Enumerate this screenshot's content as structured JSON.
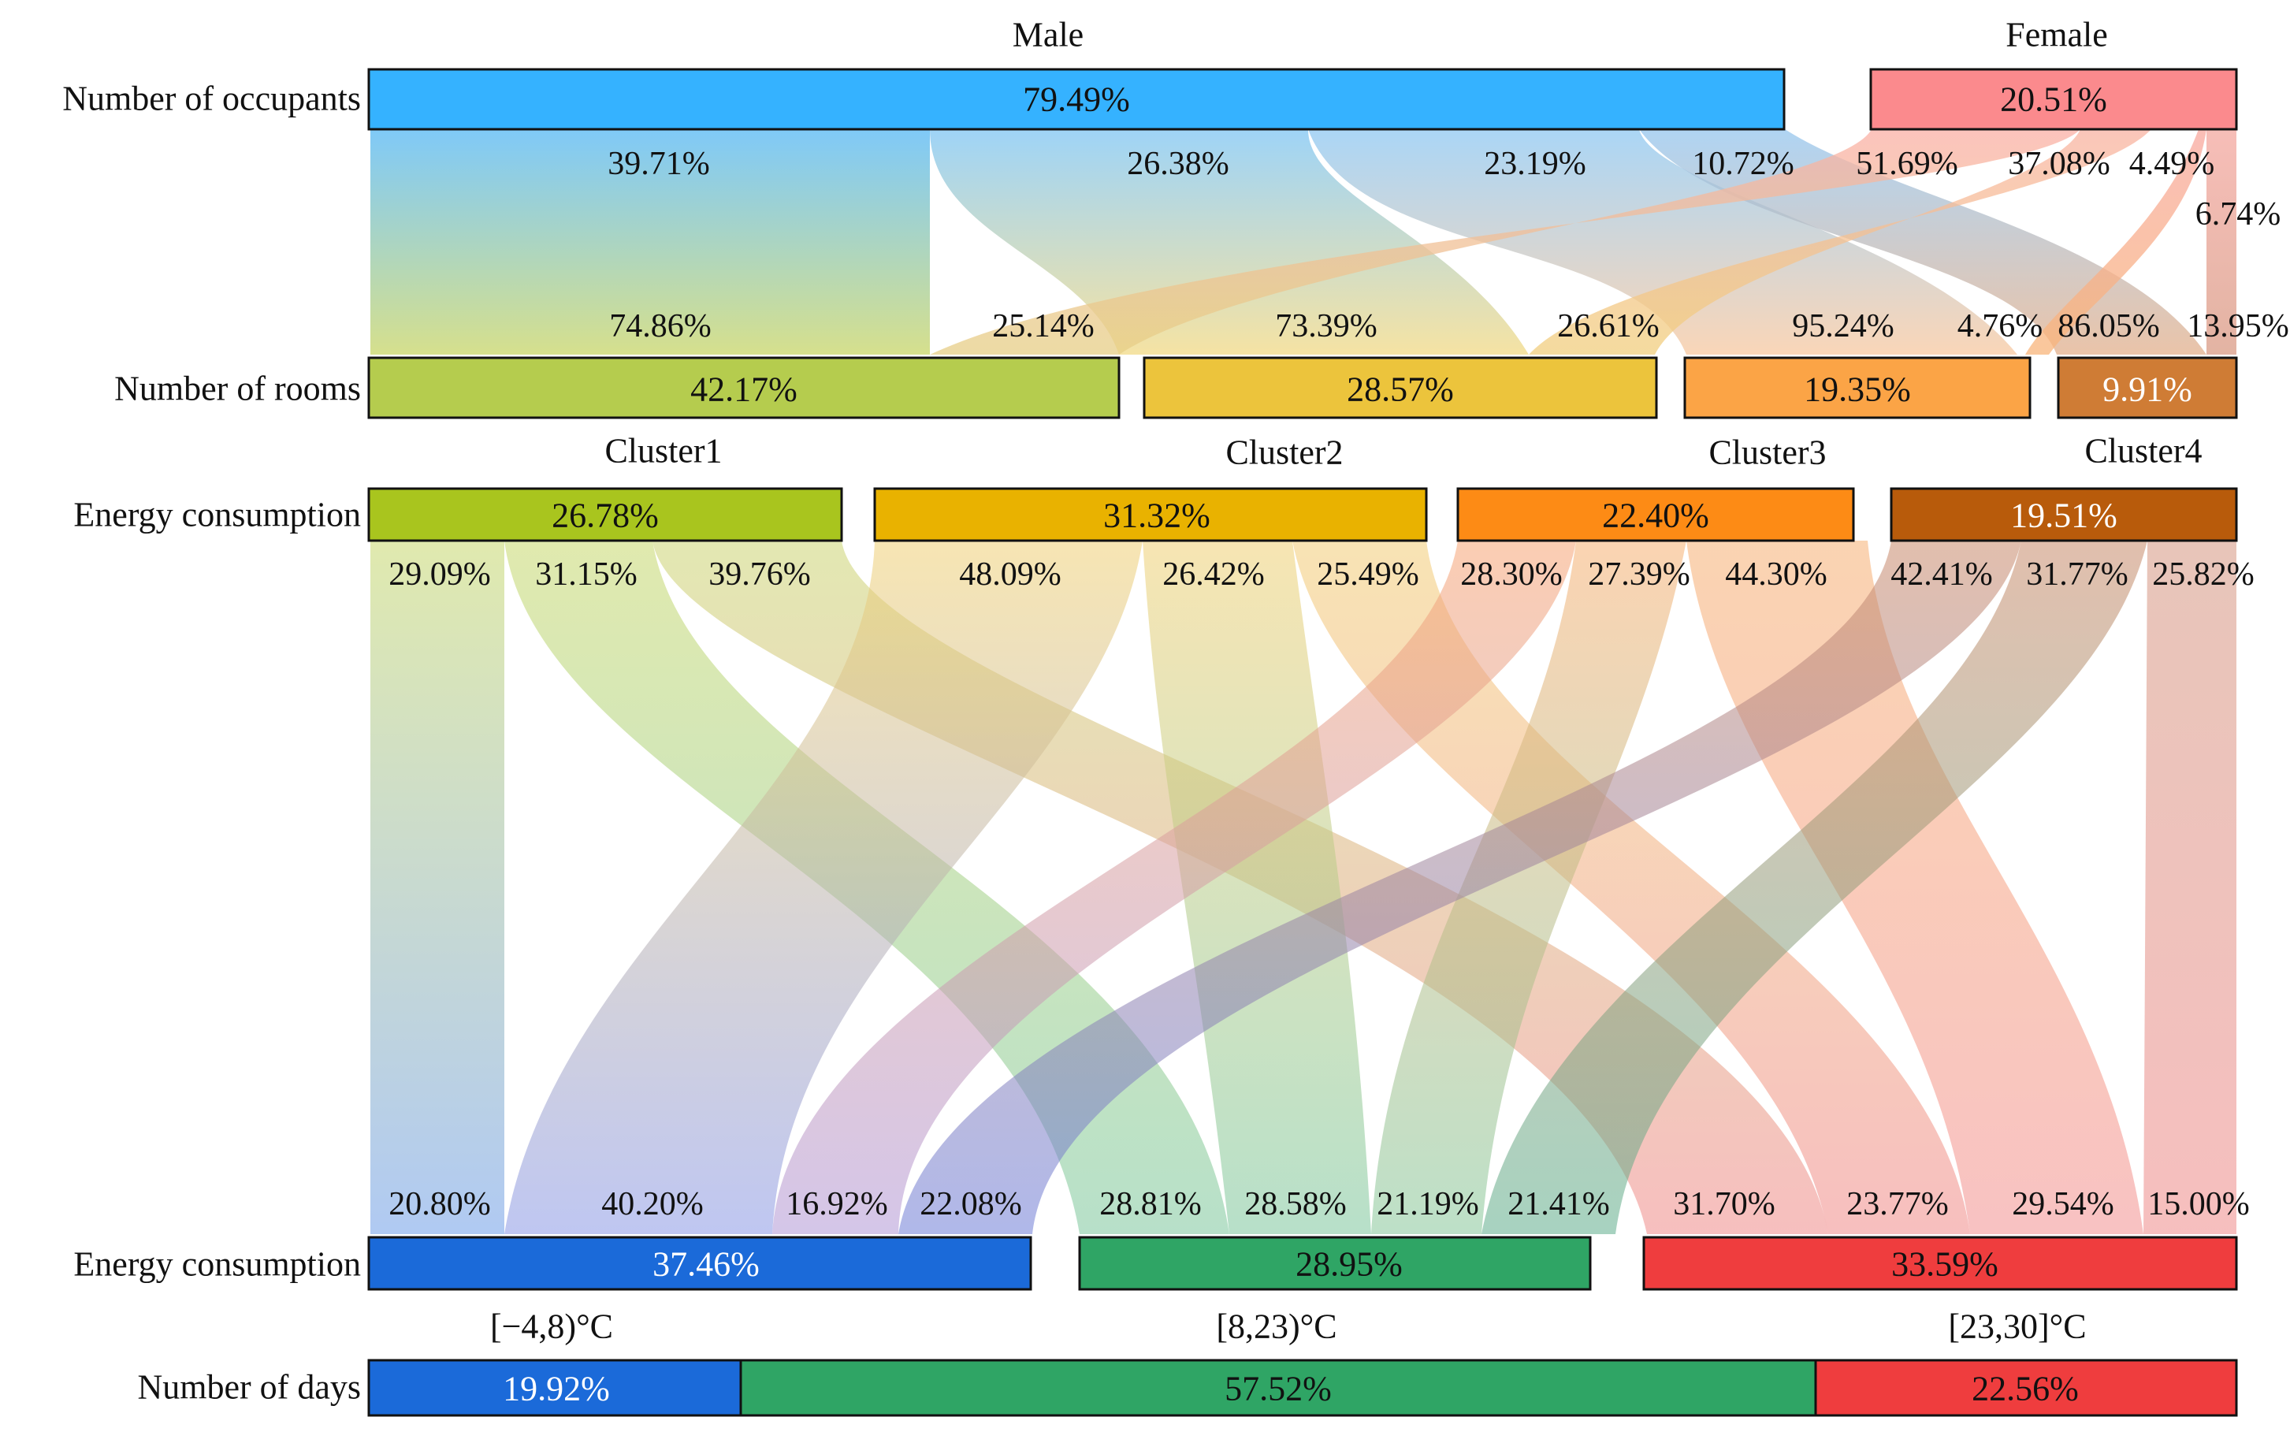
{
  "row_labels": {
    "occupants": "Number of occupants",
    "rooms": "Number of rooms",
    "energy_top": "Energy consumption",
    "energy_bottom": "Energy consumption",
    "days": "Number of days"
  },
  "group_labels": {
    "male": "Male",
    "female": "Female",
    "cluster1": "Cluster1",
    "cluster2": "Cluster2",
    "cluster3": "Cluster3",
    "cluster4": "Cluster4",
    "temp_low": "[−4,8)°C",
    "temp_mid": "[8,23)°C",
    "temp_high": "[23,30]°C"
  },
  "bars": {
    "occupants": [
      {
        "name": "male",
        "label": "79.49%",
        "color": "#35b2ff",
        "text_color": "#111111"
      },
      {
        "name": "female",
        "label": "20.51%",
        "color": "#fb8a8d",
        "text_color": "#111111"
      }
    ],
    "rooms": [
      {
        "name": "room1",
        "label": "42.17%",
        "color": "#b5cc4e",
        "text_color": "#111111"
      },
      {
        "name": "room2",
        "label": "28.57%",
        "color": "#ecc43c",
        "text_color": "#111111"
      },
      {
        "name": "room3",
        "label": "19.35%",
        "color": "#fba446",
        "text_color": "#111111"
      },
      {
        "name": "room4",
        "label": "9.91%",
        "color": "#cf7c35",
        "text_color": "#ffffff"
      }
    ],
    "energy_top": [
      {
        "name": "cluster1",
        "label": "26.78%",
        "color": "#a9c51e",
        "text_color": "#111111"
      },
      {
        "name": "cluster2",
        "label": "31.32%",
        "color": "#e9b200",
        "text_color": "#111111"
      },
      {
        "name": "cluster3",
        "label": "22.40%",
        "color": "#fd8b15",
        "text_color": "#111111"
      },
      {
        "name": "cluster4",
        "label": "19.51%",
        "color": "#b85b0b",
        "text_color": "#ffffff"
      }
    ],
    "energy_bottom": [
      {
        "name": "temp-low",
        "label": "37.46%",
        "color": "#1b6ad9",
        "text_color": "#ffffff"
      },
      {
        "name": "temp-mid",
        "label": "28.95%",
        "color": "#2fa565",
        "text_color": "#111111"
      },
      {
        "name": "temp-high",
        "label": "33.59%",
        "color": "#ef3d3e",
        "text_color": "#111111"
      }
    ],
    "days": [
      {
        "name": "days-low",
        "label": "19.92%",
        "color": "#1b6ad9",
        "text_color": "#ffffff"
      },
      {
        "name": "days-mid",
        "label": "57.52%",
        "color": "#2fa565",
        "text_color": "#111111"
      },
      {
        "name": "days-high",
        "label": "22.56%",
        "color": "#ef3d3e",
        "text_color": "#111111"
      }
    ]
  },
  "flow_labels": {
    "occupants_to_rooms_top": [
      "39.71%",
      "26.38%",
      "23.19%",
      "10.72%",
      "51.69%",
      "37.08%",
      "4.49%",
      "6.74%"
    ],
    "occupants_to_rooms_bottom": [
      "74.86%",
      "25.14%",
      "73.39%",
      "26.61%",
      "95.24%",
      "4.76%",
      "86.05%",
      "13.95%"
    ],
    "energy_to_temp_top": [
      "29.09%",
      "31.15%",
      "39.76%",
      "48.09%",
      "26.42%",
      "25.49%",
      "28.30%",
      "27.39%",
      "44.30%",
      "42.41%",
      "31.77%",
      "25.82%"
    ],
    "energy_to_temp_bottom": [
      "20.80%",
      "40.20%",
      "16.92%",
      "22.08%",
      "28.81%",
      "28.58%",
      "21.19%",
      "21.41%",
      "31.70%",
      "23.77%",
      "29.54%",
      "15.00%"
    ]
  }
}
